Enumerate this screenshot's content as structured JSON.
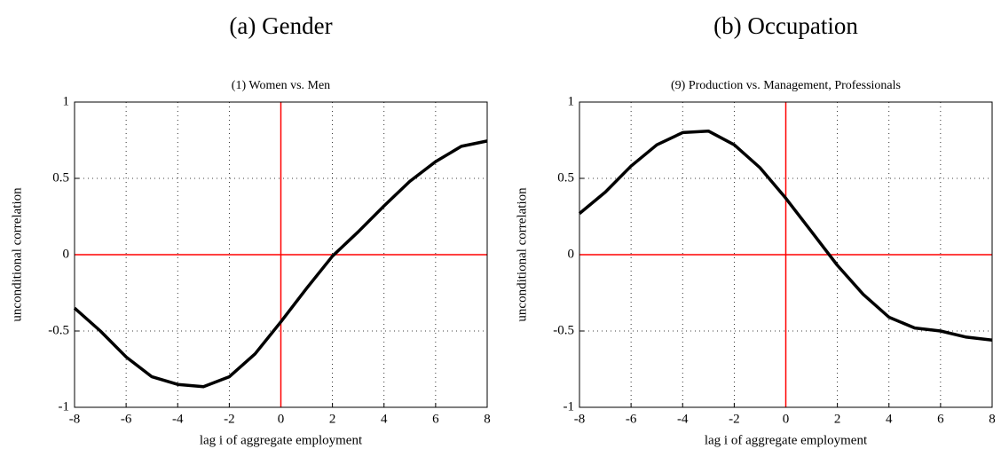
{
  "chart_data": [
    {
      "type": "line",
      "heading": "(a) Gender",
      "title": "(1) Women vs. Men",
      "xlabel": "lag i of aggregate employment",
      "ylabel": "unconditional correlation",
      "x": [
        -8,
        -7,
        -6,
        -5,
        -4,
        -3,
        -2,
        -1,
        0,
        1,
        2,
        3,
        4,
        5,
        6,
        7,
        8
      ],
      "values": [
        -0.35,
        -0.5,
        -0.67,
        -0.8,
        -0.85,
        -0.865,
        -0.8,
        -0.65,
        -0.44,
        -0.22,
        -0.01,
        0.15,
        0.32,
        0.48,
        0.61,
        0.71,
        0.745
      ],
      "color": "#000000",
      "xlim": [
        -8,
        8
      ],
      "xticks": [
        -8,
        -6,
        -4,
        -2,
        0,
        2,
        4,
        6,
        8
      ],
      "ylim": [
        -1,
        1
      ],
      "yticks": [
        -1,
        -0.5,
        0,
        0.5,
        1
      ],
      "grid": true,
      "reference_lines": {
        "x": 0,
        "y": 0,
        "color": "#ff0000"
      }
    },
    {
      "type": "line",
      "heading": "(b) Occupation",
      "title": "(9) Production vs. Management, Professionals",
      "xlabel": "lag i of aggregate employment",
      "ylabel": "unconditional correlation",
      "x": [
        -8,
        -7,
        -6,
        -5,
        -4,
        -3,
        -2,
        -1,
        0,
        1,
        2,
        3,
        4,
        5,
        6,
        7,
        8
      ],
      "values": [
        0.27,
        0.41,
        0.58,
        0.72,
        0.8,
        0.81,
        0.72,
        0.57,
        0.37,
        0.15,
        -0.07,
        -0.26,
        -0.41,
        -0.48,
        -0.5,
        -0.54,
        -0.56
      ],
      "color": "#000000",
      "xlim": [
        -8,
        8
      ],
      "xticks": [
        -8,
        -6,
        -4,
        -2,
        0,
        2,
        4,
        6,
        8
      ],
      "ylim": [
        -1,
        1
      ],
      "yticks": [
        -1,
        -0.5,
        0,
        0.5,
        1
      ],
      "grid": true,
      "reference_lines": {
        "x": 0,
        "y": 0,
        "color": "#ff0000"
      }
    }
  ]
}
